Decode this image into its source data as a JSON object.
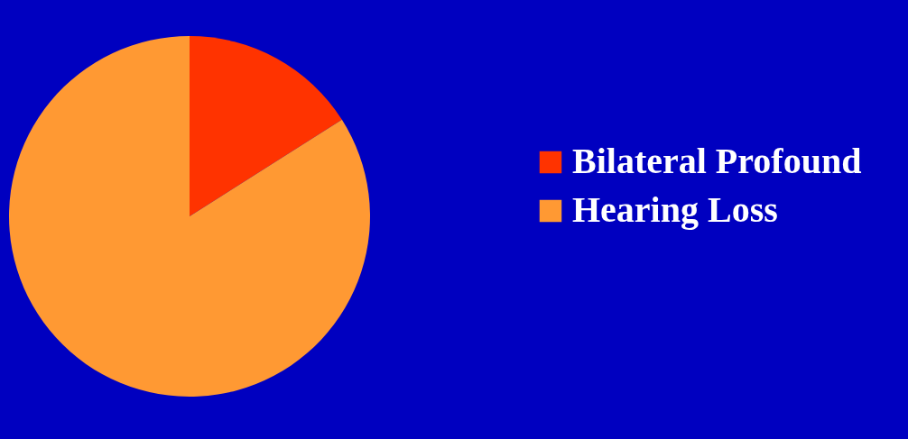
{
  "chart_data": {
    "type": "pie",
    "categories": [
      "Bilateral Profound",
      "Hearing Loss"
    ],
    "values": [
      16,
      84
    ],
    "colors": [
      "#ff3300",
      "#ff9933"
    ],
    "legend": "right"
  }
}
